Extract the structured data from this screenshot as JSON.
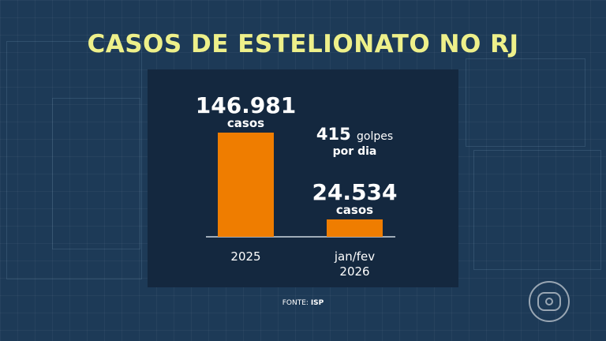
{
  "title": "CASOS DE ESTELIONATO NO RJ",
  "source": {
    "prefix": "FONTE:",
    "name": "ISP"
  },
  "colors": {
    "background": "#1d3a57",
    "panel": "#14283f",
    "title": "#eef08a",
    "bar": "#ef7d00",
    "text": "#ffffff"
  },
  "logo_icon": "tv-globo-logo",
  "chart_data": {
    "type": "bar",
    "title": "CASOS DE ESTELIONATO NO RJ",
    "categories": [
      "2025",
      "jan/fev 2026"
    ],
    "values": [
      146981,
      24534
    ],
    "data_labels": [
      {
        "value": "146.981",
        "unit": "casos"
      },
      {
        "value": "24.534",
        "unit": "casos"
      }
    ],
    "annotation": {
      "value": "415",
      "unit": "golpes",
      "line2": "por dia"
    },
    "ylim": [
      0,
      146981
    ],
    "grid": false,
    "legend": "none"
  }
}
